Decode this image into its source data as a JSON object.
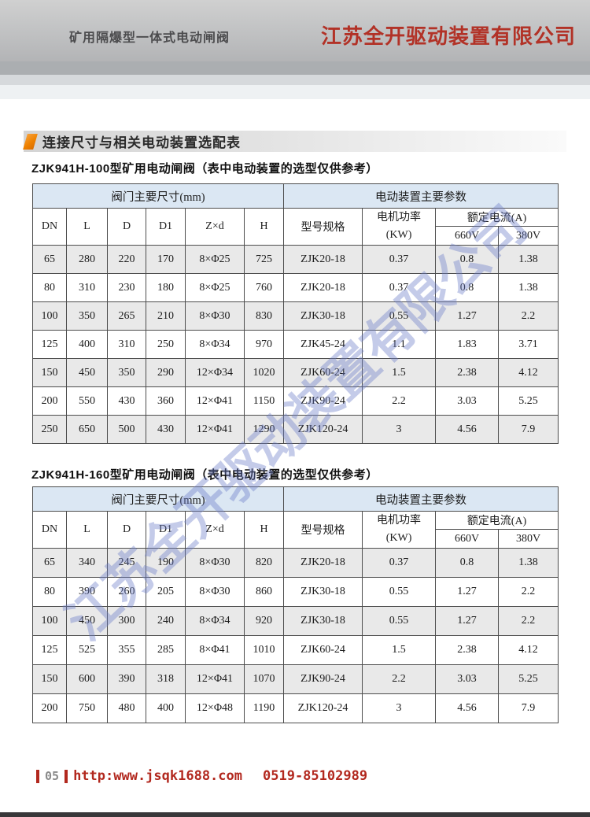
{
  "header": {
    "left_title": "矿用隔爆型一体式电动闸阀",
    "company": "江苏全开驱动装置有限公司"
  },
  "section_title": "连接尺寸与相关电动装置选配表",
  "watermark_text": "江苏全开驱动装置有限公司",
  "table_headers": {
    "group_left": "阀门主要尺寸(mm)",
    "group_right": "电动装置主要参数",
    "dn": "DN",
    "l": "L",
    "d": "D",
    "d1": "D1",
    "zxd": "Z×d",
    "h": "H",
    "model": "型号规格",
    "power_line1": "电机功率",
    "power_line2": "(KW)",
    "current_group": "额定电流(A)",
    "v660": "660V",
    "v380": "380V"
  },
  "tables": [
    {
      "title": "ZJK941H-100型矿用电动闸阀（表中电动装置的选型仅供参考）",
      "rows": [
        [
          "65",
          "280",
          "220",
          "170",
          "8×Φ25",
          "725",
          "ZJK20-18",
          "0.37",
          "0.8",
          "1.38"
        ],
        [
          "80",
          "310",
          "230",
          "180",
          "8×Φ25",
          "760",
          "ZJK20-18",
          "0.37",
          "0.8",
          "1.38"
        ],
        [
          "100",
          "350",
          "265",
          "210",
          "8×Φ30",
          "830",
          "ZJK30-18",
          "0.55",
          "1.27",
          "2.2"
        ],
        [
          "125",
          "400",
          "310",
          "250",
          "8×Φ34",
          "970",
          "ZJK45-24",
          "1.1",
          "1.83",
          "3.71"
        ],
        [
          "150",
          "450",
          "350",
          "290",
          "12×Φ34",
          "1020",
          "ZJK60-24",
          "1.5",
          "2.38",
          "4.12"
        ],
        [
          "200",
          "550",
          "430",
          "360",
          "12×Φ41",
          "1150",
          "ZJK90-24",
          "2.2",
          "3.03",
          "5.25"
        ],
        [
          "250",
          "650",
          "500",
          "430",
          "12×Φ41",
          "1290",
          "ZJK120-24",
          "3",
          "4.56",
          "7.9"
        ]
      ]
    },
    {
      "title": "ZJK941H-160型矿用电动闸阀（表中电动装置的选型仅供参考）",
      "rows": [
        [
          "65",
          "340",
          "245",
          "190",
          "8×Φ30",
          "820",
          "ZJK20-18",
          "0.37",
          "0.8",
          "1.38"
        ],
        [
          "80",
          "390",
          "260",
          "205",
          "8×Φ30",
          "860",
          "ZJK30-18",
          "0.55",
          "1.27",
          "2.2"
        ],
        [
          "100",
          "450",
          "300",
          "240",
          "8×Φ34",
          "920",
          "ZJK30-18",
          "0.55",
          "1.27",
          "2.2"
        ],
        [
          "125",
          "525",
          "355",
          "285",
          "8×Φ41",
          "1010",
          "ZJK60-24",
          "1.5",
          "2.38",
          "4.12"
        ],
        [
          "150",
          "600",
          "390",
          "318",
          "12×Φ41",
          "1070",
          "ZJK90-24",
          "2.2",
          "3.03",
          "5.25"
        ],
        [
          "200",
          "750",
          "480",
          "400",
          "12×Φ48",
          "1190",
          "ZJK120-24",
          "3",
          "4.56",
          "7.9"
        ]
      ]
    }
  ],
  "footer": {
    "page_number": "05",
    "url": "http:www.jsqk1688.com",
    "phone": "0519-85102989"
  },
  "colors": {
    "company_red": "#b23227",
    "footer_red": "#b2281e",
    "header_blue": "#dbe7f3",
    "stripe_gray": "#e9e9e9",
    "orange_marker": "#ef8200",
    "watermark_blue": "#6c7cc8"
  }
}
